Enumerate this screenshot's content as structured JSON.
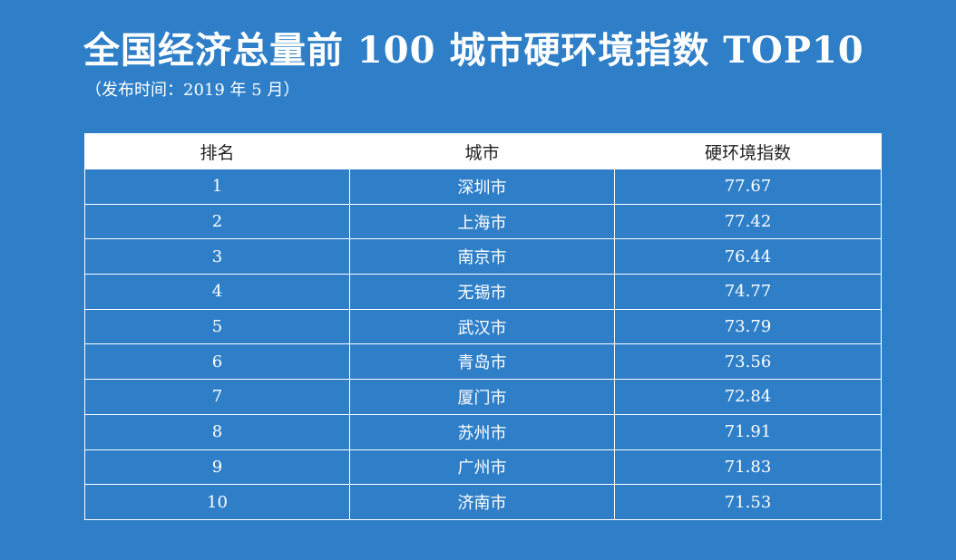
{
  "header": {
    "title": "全国经济总量前 100 城市硬环境指数 TOP10",
    "subtitle": "（发布时间：2019 年 5 月）"
  },
  "table": {
    "columns": [
      "排名",
      "城市",
      "硬环境指数"
    ]
  },
  "chart_data": {
    "type": "table",
    "title": "全国经济总量前 100 城市硬环境指数 TOP10",
    "subtitle": "（发布时间：2019 年 5 月）",
    "columns": [
      "排名",
      "城市",
      "硬环境指数"
    ],
    "rows": [
      {
        "rank": "1",
        "city": "深圳市",
        "value": "77.67"
      },
      {
        "rank": "2",
        "city": "上海市",
        "value": "77.42"
      },
      {
        "rank": "3",
        "city": "南京市",
        "value": "76.44"
      },
      {
        "rank": "4",
        "city": "无锡市",
        "value": "74.77"
      },
      {
        "rank": "5",
        "city": "武汉市",
        "value": "73.79"
      },
      {
        "rank": "6",
        "city": "青岛市",
        "value": "73.56"
      },
      {
        "rank": "7",
        "city": "厦门市",
        "value": "72.84"
      },
      {
        "rank": "8",
        "city": "苏州市",
        "value": "71.91"
      },
      {
        "rank": "9",
        "city": "广州市",
        "value": "71.83"
      },
      {
        "rank": "10",
        "city": "济南市",
        "value": "71.53"
      }
    ]
  }
}
